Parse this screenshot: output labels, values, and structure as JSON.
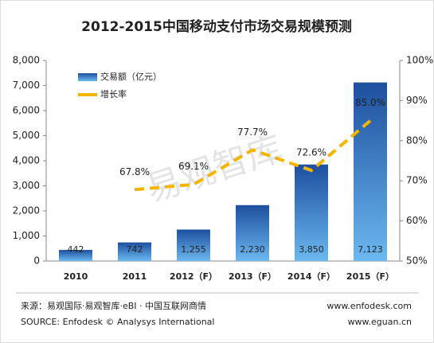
{
  "chart_data": {
    "type": "bar-line",
    "title": "2012-2015中国移动支付市场交易规模预测",
    "watermark": "易观智库",
    "categories": [
      "2010",
      "2011",
      "2012（F）",
      "2013（F）",
      "2014（F）",
      "2015（F）"
    ],
    "series": [
      {
        "name": "交易额（亿元）",
        "type": "bar",
        "color": "#2a6fc4",
        "values": [
          442,
          742,
          1255,
          2230,
          3850,
          7123
        ],
        "value_labels": [
          "442",
          "742",
          "1,255",
          "2,230",
          "3,850",
          "7,123"
        ]
      },
      {
        "name": "增长率",
        "type": "line",
        "axis": "y2",
        "color": "#f5b400",
        "values": [
          null,
          67.8,
          69.1,
          77.7,
          72.6,
          85.0
        ],
        "value_labels": [
          null,
          "67.8%",
          "69.1%",
          "77.7%",
          "72.6%",
          "85.0%"
        ]
      }
    ],
    "ylim": [
      0,
      8000
    ],
    "yticks": [
      0,
      {
        "value": 1000,
        "label": "1,000"
      },
      {
        "value": 2000,
        "label": "2,000"
      },
      {
        "value": 3000,
        "label": "3,000"
      },
      {
        "value": 4000,
        "label": "4,000"
      },
      {
        "value": 5000,
        "label": "5,000"
      },
      {
        "value": 6000,
        "label": "6,000"
      },
      {
        "value": 7000,
        "label": "7,000"
      },
      {
        "value": 8000,
        "label": "8,000"
      }
    ],
    "y2lim": [
      50,
      100
    ],
    "y2ticks": [
      {
        "value": 50,
        "label": "50%"
      },
      {
        "value": 60,
        "label": "60%"
      },
      {
        "value": 70,
        "label": "70%"
      },
      {
        "value": 80,
        "label": "80%"
      },
      {
        "value": 90,
        "label": "90%"
      },
      {
        "value": 100,
        "label": "100%"
      }
    ],
    "legend": "top-left",
    "source": [
      "来源：易观国际·易观智库·eBI · 中国互联网商情",
      "SOURCE: Enfodesk © Analysys International"
    ],
    "links": [
      "www.enfodesk.com",
      "www.eguan.cn"
    ]
  }
}
